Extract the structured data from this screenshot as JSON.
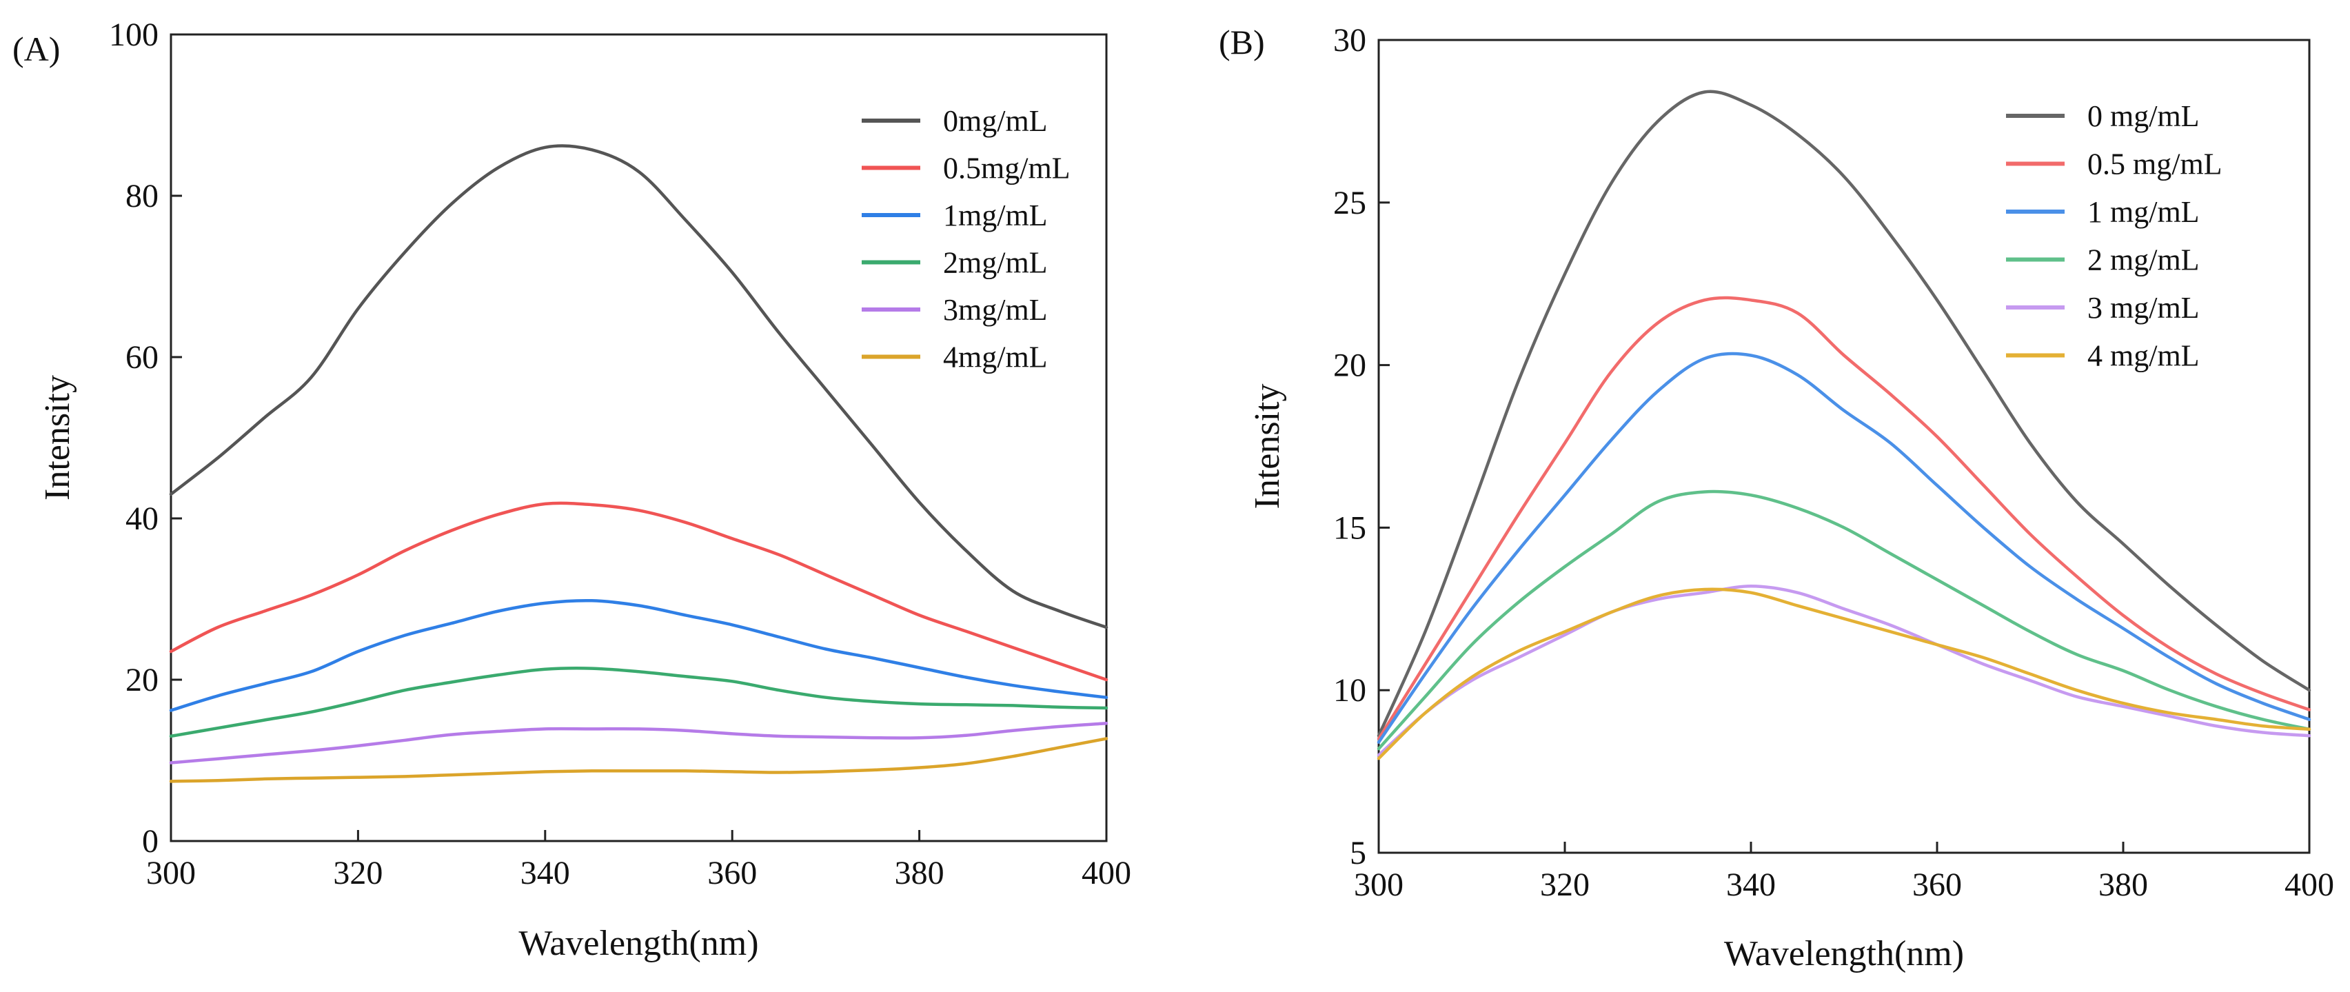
{
  "chart_data": [
    {
      "type": "line",
      "panel_label": "(A)",
      "xlabel": "Wavelength(nm)",
      "ylabel": "Intensity",
      "xlim": [
        300,
        400
      ],
      "ylim": [
        0,
        100
      ],
      "xticks": [
        300,
        320,
        340,
        360,
        380,
        400
      ],
      "yticks": [
        0,
        20,
        40,
        60,
        80,
        100
      ],
      "grid": false,
      "legend_position": "top-right",
      "series": [
        {
          "name": "0mg/mL",
          "color": "#555555",
          "x": [
            300,
            305,
            310,
            315,
            320,
            325,
            330,
            335,
            340,
            345,
            350,
            355,
            360,
            365,
            370,
            375,
            380,
            385,
            390,
            395,
            400
          ],
          "y": [
            43,
            47.5,
            52.5,
            57.5,
            66,
            73,
            79,
            83.5,
            86,
            85.7,
            83,
            77,
            70.5,
            63,
            56,
            49,
            42,
            36,
            31,
            28.5,
            26.5
          ]
        },
        {
          "name": "0.5mg/mL",
          "color": "#f05454",
          "x": [
            300,
            305,
            310,
            315,
            320,
            325,
            330,
            335,
            340,
            345,
            350,
            355,
            360,
            365,
            370,
            375,
            380,
            385,
            390,
            395,
            400
          ],
          "y": [
            23.5,
            26.5,
            28.5,
            30.5,
            33,
            36,
            38.5,
            40.5,
            41.8,
            41.7,
            41,
            39.5,
            37.5,
            35.5,
            33,
            30.5,
            28,
            26,
            24,
            22,
            20
          ]
        },
        {
          "name": "1mg/mL",
          "color": "#2f7fe6",
          "x": [
            300,
            305,
            310,
            315,
            320,
            325,
            330,
            335,
            340,
            345,
            350,
            355,
            360,
            365,
            370,
            375,
            380,
            385,
            390,
            395,
            400
          ],
          "y": [
            16.2,
            18,
            19.5,
            21,
            23.5,
            25.5,
            27,
            28.5,
            29.5,
            29.8,
            29.2,
            28,
            26.8,
            25.3,
            23.8,
            22.7,
            21.5,
            20.3,
            19.3,
            18.5,
            17.8
          ]
        },
        {
          "name": "2mg/mL",
          "color": "#3aaa6e",
          "x": [
            300,
            305,
            310,
            315,
            320,
            325,
            330,
            335,
            340,
            345,
            350,
            355,
            360,
            365,
            370,
            375,
            380,
            385,
            390,
            395,
            400
          ],
          "y": [
            13,
            14,
            15,
            16,
            17.3,
            18.7,
            19.7,
            20.6,
            21.3,
            21.4,
            21,
            20.4,
            19.8,
            18.7,
            17.8,
            17.3,
            17,
            16.9,
            16.8,
            16.6,
            16.5
          ]
        },
        {
          "name": "3mg/mL",
          "color": "#b57be8",
          "x": [
            300,
            305,
            310,
            315,
            320,
            325,
            330,
            335,
            340,
            345,
            350,
            355,
            360,
            365,
            370,
            375,
            380,
            385,
            390,
            395,
            400
          ],
          "y": [
            9.7,
            10.2,
            10.7,
            11.2,
            11.8,
            12.5,
            13.2,
            13.6,
            13.9,
            13.9,
            13.9,
            13.7,
            13.3,
            13,
            12.9,
            12.8,
            12.8,
            13.1,
            13.7,
            14.2,
            14.6
          ]
        },
        {
          "name": "4mg/mL",
          "color": "#dba42a",
          "x": [
            300,
            305,
            310,
            315,
            320,
            325,
            330,
            335,
            340,
            345,
            350,
            355,
            360,
            365,
            370,
            375,
            380,
            385,
            390,
            395,
            400
          ],
          "y": [
            7.4,
            7.5,
            7.7,
            7.8,
            7.9,
            8,
            8.2,
            8.4,
            8.6,
            8.7,
            8.7,
            8.7,
            8.6,
            8.5,
            8.6,
            8.8,
            9.1,
            9.6,
            10.5,
            11.6,
            12.7
          ]
        }
      ]
    },
    {
      "type": "line",
      "panel_label": "(B)",
      "xlabel": "Wavelength(nm)",
      "ylabel": "Intensity",
      "xlim": [
        300,
        400
      ],
      "ylim": [
        5,
        30
      ],
      "xticks": [
        300,
        320,
        340,
        360,
        380,
        400
      ],
      "yticks": [
        5,
        10,
        15,
        20,
        25,
        30
      ],
      "grid": false,
      "legend_position": "top-right",
      "series": [
        {
          "name": "0 mg/mL",
          "color": "#666666",
          "x": [
            300,
            305,
            310,
            315,
            320,
            325,
            330,
            335,
            340,
            345,
            350,
            355,
            360,
            365,
            370,
            375,
            380,
            385,
            390,
            395,
            400
          ],
          "y": [
            8.6,
            11.8,
            15.6,
            19.5,
            22.8,
            25.6,
            27.5,
            28.4,
            28,
            27.1,
            25.8,
            24,
            22,
            19.8,
            17.6,
            15.8,
            14.5,
            13.2,
            12,
            10.9,
            10
          ]
        },
        {
          "name": "0.5 mg/mL",
          "color": "#f26b6b",
          "x": [
            300,
            305,
            310,
            315,
            320,
            325,
            330,
            335,
            340,
            345,
            350,
            355,
            360,
            365,
            370,
            375,
            380,
            385,
            390,
            395,
            400
          ],
          "y": [
            8.5,
            10.8,
            13.1,
            15.4,
            17.6,
            19.8,
            21.3,
            22,
            22,
            21.6,
            20.3,
            19.1,
            17.8,
            16.3,
            14.8,
            13.5,
            12.3,
            11.3,
            10.5,
            9.9,
            9.4
          ]
        },
        {
          "name": "1 mg/mL",
          "color": "#4a90e8",
          "x": [
            300,
            305,
            310,
            315,
            320,
            325,
            330,
            335,
            340,
            345,
            350,
            355,
            360,
            365,
            370,
            375,
            380,
            385,
            390,
            395,
            400
          ],
          "y": [
            8.4,
            10.5,
            12.5,
            14.3,
            16,
            17.7,
            19.2,
            20.2,
            20.3,
            19.7,
            18.6,
            17.6,
            16.3,
            15,
            13.8,
            12.8,
            11.9,
            11,
            10.2,
            9.6,
            9.1
          ]
        },
        {
          "name": "2 mg/mL",
          "color": "#5fc08a",
          "x": [
            300,
            305,
            310,
            315,
            320,
            325,
            330,
            335,
            340,
            345,
            350,
            355,
            360,
            365,
            370,
            375,
            380,
            385,
            390,
            395,
            400
          ],
          "y": [
            8.2,
            9.8,
            11.4,
            12.7,
            13.8,
            14.8,
            15.8,
            16.1,
            16,
            15.6,
            15,
            14.2,
            13.4,
            12.6,
            11.8,
            11.1,
            10.6,
            10,
            9.5,
            9.1,
            8.8
          ]
        },
        {
          "name": "3 mg/mL",
          "color": "#c69af0",
          "x": [
            300,
            305,
            310,
            315,
            320,
            325,
            330,
            335,
            340,
            345,
            350,
            355,
            360,
            365,
            370,
            375,
            380,
            385,
            390,
            395,
            400
          ],
          "y": [
            8,
            9.3,
            10.3,
            11,
            11.7,
            12.4,
            12.8,
            13,
            13.2,
            13,
            12.5,
            12,
            11.4,
            10.8,
            10.3,
            9.8,
            9.5,
            9.2,
            8.9,
            8.7,
            8.6
          ]
        },
        {
          "name": "4 mg/mL",
          "color": "#e4b034",
          "x": [
            300,
            305,
            310,
            315,
            320,
            325,
            330,
            335,
            340,
            345,
            350,
            355,
            360,
            365,
            370,
            375,
            380,
            385,
            390,
            395,
            400
          ],
          "y": [
            7.9,
            9.3,
            10.4,
            11.2,
            11.8,
            12.4,
            12.9,
            13.1,
            13,
            12.6,
            12.2,
            11.8,
            11.4,
            11,
            10.5,
            10,
            9.6,
            9.3,
            9.1,
            8.9,
            8.8
          ]
        }
      ]
    }
  ]
}
